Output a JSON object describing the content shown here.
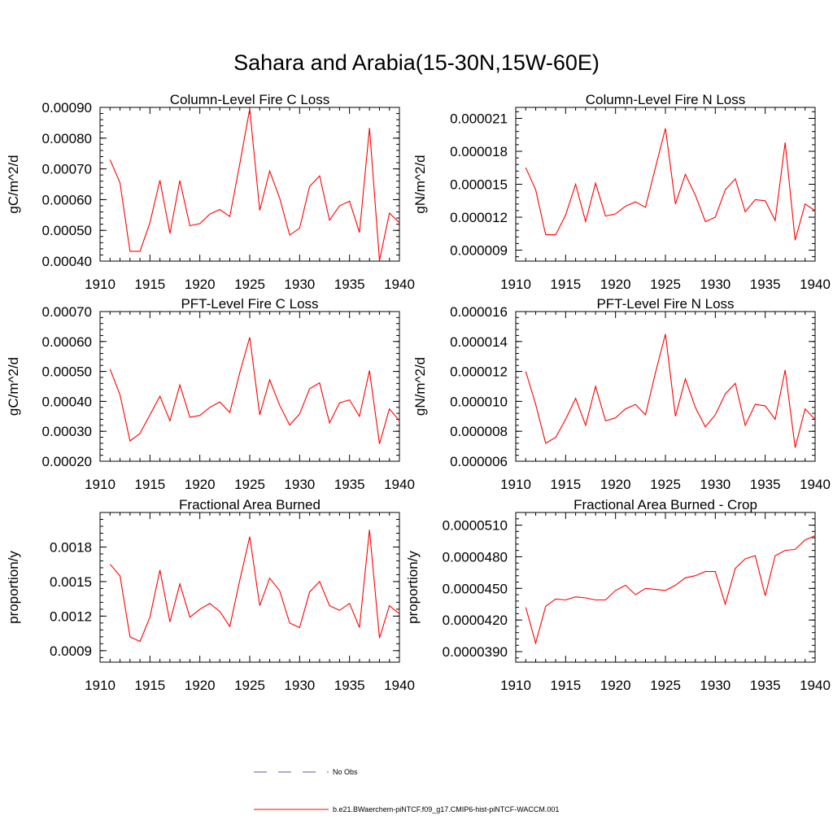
{
  "figure_title": "Sahara and Arabia(15-30N,15W-60E)",
  "legend": {
    "entries": [
      {
        "label": "No Obs",
        "color": "#5a5aa8",
        "dash": true
      },
      {
        "label": "b.e21.BWaerchem-piNTCF.f09_g17.CMIP6-hist-piNTCF-WACCM.001",
        "color": "#ff0000",
        "dash": false
      }
    ]
  },
  "chart_data": [
    {
      "type": "line",
      "title": "Column-Level Fire C Loss",
      "xlabel": "",
      "ylabel": "gC/m^2/d",
      "xlim": [
        1910,
        1940
      ],
      "ylim": [
        0.0004,
        0.0009
      ],
      "yticks": [
        "0.00040",
        "0.00050",
        "0.00060",
        "0.00070",
        "0.00080",
        "0.00090"
      ],
      "yticks_values": [
        0.0004,
        0.0005,
        0.0006,
        0.0007,
        0.0008,
        0.0009
      ],
      "xticks": [
        1910,
        1915,
        1920,
        1925,
        1930,
        1935,
        1940
      ],
      "color": "#ff0000",
      "x": [
        1911,
        1912,
        1913,
        1914,
        1915,
        1916,
        1917,
        1918,
        1919,
        1920,
        1921,
        1922,
        1923,
        1924,
        1925,
        1926,
        1927,
        1928,
        1929,
        1930,
        1931,
        1932,
        1933,
        1934,
        1935,
        1936,
        1937,
        1938,
        1939,
        1940
      ],
      "y": [
        0.00073,
        0.000655,
        0.000432,
        0.000432,
        0.000525,
        0.000663,
        0.00049,
        0.000662,
        0.000515,
        0.000522,
        0.000553,
        0.000568,
        0.000545,
        0.000715,
        0.000895,
        0.000565,
        0.000693,
        0.000605,
        0.000485,
        0.000507,
        0.000643,
        0.000677,
        0.000533,
        0.00058,
        0.000595,
        0.000493,
        0.000833,
        0.000402,
        0.000556,
        0.000525
      ]
    },
    {
      "type": "line",
      "title": "Column-Level Fire N Loss",
      "xlabel": "",
      "ylabel": "gN/m^2/d",
      "xlim": [
        1910,
        1940
      ],
      "ylim": [
        8e-06,
        2.2e-05
      ],
      "yticks": [
        "0.000009",
        "0.000012",
        "0.000015",
        "0.000018",
        "0.000021"
      ],
      "yticks_values": [
        9e-06,
        1.2e-05,
        1.5e-05,
        1.8e-05,
        2.1e-05
      ],
      "xticks": [
        1910,
        1915,
        1920,
        1925,
        1930,
        1935,
        1940
      ],
      "color": "#ff0000",
      "x": [
        1911,
        1912,
        1913,
        1914,
        1915,
        1916,
        1917,
        1918,
        1919,
        1920,
        1921,
        1922,
        1923,
        1924,
        1925,
        1926,
        1927,
        1928,
        1929,
        1930,
        1931,
        1932,
        1933,
        1934,
        1935,
        1936,
        1937,
        1938,
        1939,
        1940
      ],
      "y": [
        1.65e-05,
        1.45e-05,
        1.04e-05,
        1.04e-05,
        1.22e-05,
        1.5e-05,
        1.16e-05,
        1.51e-05,
        1.21e-05,
        1.23e-05,
        1.3e-05,
        1.34e-05,
        1.29e-05,
        1.65e-05,
        2.01e-05,
        1.32e-05,
        1.59e-05,
        1.4e-05,
        1.16e-05,
        1.2e-05,
        1.45e-05,
        1.55e-05,
        1.25e-05,
        1.36e-05,
        1.35e-05,
        1.17e-05,
        1.88e-05,
        9.9e-06,
        1.32e-05,
        1.26e-05
      ]
    },
    {
      "type": "line",
      "title": "PFT-Level Fire C Loss",
      "xlabel": "",
      "ylabel": "gC/m^2/d",
      "xlim": [
        1910,
        1940
      ],
      "ylim": [
        0.0002,
        0.0007
      ],
      "yticks": [
        "0.00020",
        "0.00030",
        "0.00040",
        "0.00050",
        "0.00060",
        "0.00070"
      ],
      "yticks_values": [
        0.0002,
        0.0003,
        0.0004,
        0.0005,
        0.0006,
        0.0007
      ],
      "xticks": [
        1910,
        1915,
        1920,
        1925,
        1930,
        1935,
        1940
      ],
      "color": "#ff0000",
      "x": [
        1911,
        1912,
        1913,
        1914,
        1915,
        1916,
        1917,
        1918,
        1919,
        1920,
        1921,
        1922,
        1923,
        1924,
        1925,
        1926,
        1927,
        1928,
        1929,
        1930,
        1931,
        1932,
        1933,
        1934,
        1935,
        1936,
        1937,
        1938,
        1939,
        1940
      ],
      "y": [
        0.000508,
        0.000422,
        0.000268,
        0.000293,
        0.000355,
        0.000417,
        0.000335,
        0.000455,
        0.000347,
        0.000353,
        0.00038,
        0.000398,
        0.000363,
        0.000495,
        0.000614,
        0.000355,
        0.000472,
        0.000387,
        0.000321,
        0.000358,
        0.000442,
        0.000462,
        0.000328,
        0.000395,
        0.000405,
        0.00035,
        0.000503,
        0.000258,
        0.000375,
        0.000335
      ]
    },
    {
      "type": "line",
      "title": "PFT-Level Fire N Loss",
      "xlabel": "",
      "ylabel": "gN/m^2/d",
      "xlim": [
        1910,
        1940
      ],
      "ylim": [
        6e-06,
        1.6e-05
      ],
      "yticks": [
        "0.000006",
        "0.000008",
        "0.000010",
        "0.000012",
        "0.000014",
        "0.000016"
      ],
      "yticks_values": [
        6e-06,
        8e-06,
        1e-05,
        1.2e-05,
        1.4e-05,
        1.6e-05
      ],
      "xticks": [
        1910,
        1915,
        1920,
        1925,
        1930,
        1935,
        1940
      ],
      "color": "#ff0000",
      "x": [
        1911,
        1912,
        1913,
        1914,
        1915,
        1916,
        1917,
        1918,
        1919,
        1920,
        1921,
        1922,
        1923,
        1924,
        1925,
        1926,
        1927,
        1928,
        1929,
        1930,
        1931,
        1932,
        1933,
        1934,
        1935,
        1936,
        1937,
        1938,
        1939,
        1940
      ],
      "y": [
        1.2e-05,
        9.8e-06,
        7.2e-06,
        7.6e-06,
        8.8e-06,
        1.02e-05,
        8.4e-06,
        1.1e-05,
        8.7e-06,
        8.9e-06,
        9.5e-06,
        9.8e-06,
        9.1e-06,
        1.19e-05,
        1.45e-05,
        9e-06,
        1.15e-05,
        9.6e-06,
        8.3e-06,
        9.1e-06,
        1.05e-05,
        1.12e-05,
        8.4e-06,
        9.8e-06,
        9.7e-06,
        8.8e-06,
        1.21e-05,
        6.9e-06,
        9.5e-06,
        8.8e-06
      ]
    },
    {
      "type": "line",
      "title": "Fractional Area Burned",
      "xlabel": "",
      "ylabel": "proportion/y",
      "xlim": [
        1910,
        1940
      ],
      "ylim": [
        0.0008,
        0.0021
      ],
      "yticks": [
        "0.0009",
        "0.0012",
        "0.0015",
        "0.0018"
      ],
      "yticks_values": [
        0.0009,
        0.0012,
        0.0015,
        0.0018
      ],
      "xticks": [
        1910,
        1915,
        1920,
        1925,
        1930,
        1935,
        1940
      ],
      "color": "#ff0000",
      "x": [
        1911,
        1912,
        1913,
        1914,
        1915,
        1916,
        1917,
        1918,
        1919,
        1920,
        1921,
        1922,
        1923,
        1924,
        1925,
        1926,
        1927,
        1928,
        1929,
        1930,
        1931,
        1932,
        1933,
        1934,
        1935,
        1936,
        1937,
        1938,
        1939,
        1940
      ],
      "y": [
        0.00165,
        0.00155,
        0.00102,
        0.00098,
        0.00119,
        0.0016,
        0.00115,
        0.00148,
        0.00119,
        0.00126,
        0.00131,
        0.00124,
        0.00111,
        0.00151,
        0.00189,
        0.00129,
        0.00153,
        0.00142,
        0.00114,
        0.0011,
        0.00141,
        0.0015,
        0.00129,
        0.00125,
        0.00131,
        0.0011,
        0.00195,
        0.00101,
        0.00129,
        0.00122
      ]
    },
    {
      "type": "line",
      "title": "Fractional Area Burned - Crop",
      "xlabel": "",
      "ylabel": "proportion/y",
      "xlim": [
        1910,
        1940
      ],
      "ylim": [
        3.8e-05,
        5.22e-05
      ],
      "yticks": [
        "0.0000390",
        "0.0000420",
        "0.0000450",
        "0.0000480",
        "0.0000510"
      ],
      "yticks_values": [
        3.9e-05,
        4.2e-05,
        4.5e-05,
        4.8e-05,
        5.1e-05
      ],
      "xticks": [
        1910,
        1915,
        1920,
        1925,
        1930,
        1935,
        1940
      ],
      "color": "#ff0000",
      "x": [
        1911,
        1912,
        1913,
        1914,
        1915,
        1916,
        1917,
        1918,
        1919,
        1920,
        1921,
        1922,
        1923,
        1924,
        1925,
        1926,
        1927,
        1928,
        1929,
        1930,
        1931,
        1932,
        1933,
        1934,
        1935,
        1936,
        1937,
        1938,
        1939,
        1940
      ],
      "y": [
        4.32e-05,
        3.98e-05,
        4.33e-05,
        4.4e-05,
        4.39e-05,
        4.42e-05,
        4.41e-05,
        4.39e-05,
        4.39e-05,
        4.48e-05,
        4.53e-05,
        4.44e-05,
        4.5e-05,
        4.49e-05,
        4.48e-05,
        4.53e-05,
        4.6e-05,
        4.62e-05,
        4.66e-05,
        4.66e-05,
        4.35e-05,
        4.69e-05,
        4.78e-05,
        4.81e-05,
        4.43e-05,
        4.81e-05,
        4.86e-05,
        4.87e-05,
        4.96e-05,
        5e-05
      ]
    }
  ]
}
